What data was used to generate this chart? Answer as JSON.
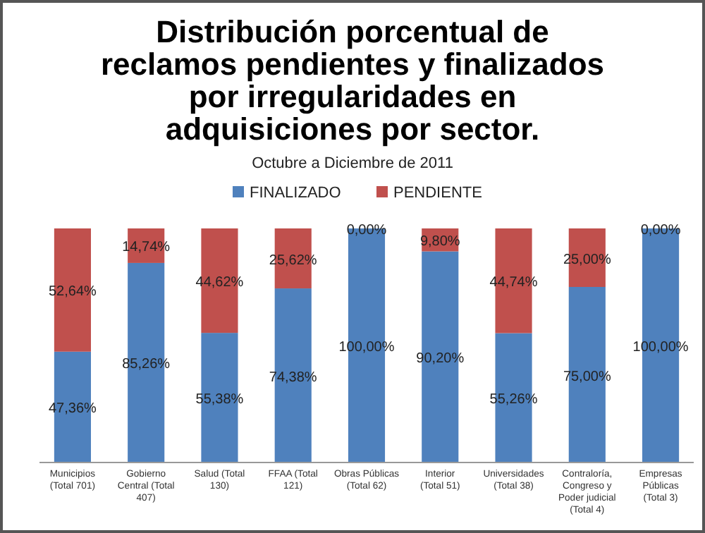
{
  "chart_data": {
    "type": "bar",
    "stacked": true,
    "title": "Distribución porcentual de reclamos pendientes y finalizados por irregularidades en adquisiciones por sector.",
    "subtitle": "Octubre a Diciembre de 2011",
    "legend": "top",
    "categories": [
      "Municipios (Total 701)",
      "Gobierno Central (Total 407)",
      "Salud (Total 130)",
      "FFAA (Total 121)",
      "Obras Públicas (Total 62)",
      "Interior (Total 51)",
      "Universidades (Total 38)",
      "Contraloría, Congreso y Poder judicial (Total 4)",
      "Empresas Públicas (Total 3)"
    ],
    "series": [
      {
        "name": "FINALIZADO",
        "color": "#4f81bd",
        "values": [
          47.36,
          85.26,
          55.38,
          74.38,
          100,
          90.2,
          55.26,
          75,
          100
        ],
        "value_labels": [
          "47,36%",
          "85,26%",
          "55,38%",
          "74,38%",
          "100,00%",
          "90,20%",
          "55,26%",
          "75,00%",
          "100,00%"
        ]
      },
      {
        "name": "PENDIENTE",
        "color": "#c0504d",
        "values": [
          52.64,
          14.74,
          44.62,
          25.62,
          0,
          9.8,
          44.74,
          25,
          0
        ],
        "value_labels": [
          "52,64%",
          "14,74%",
          "44,62%",
          "25,62%",
          "0,00%",
          "9,80%",
          "44,74%",
          "25,00%",
          "0,00%"
        ]
      }
    ]
  }
}
